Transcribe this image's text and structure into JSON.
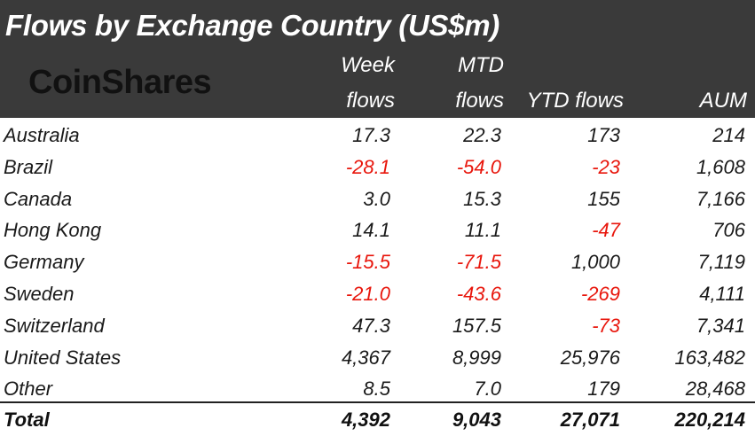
{
  "title": "Flows by Exchange Country (US$m)",
  "logo_text": "CoinShares",
  "columns": {
    "week": [
      "Week",
      "flows"
    ],
    "mtd": [
      "MTD",
      "flows"
    ],
    "ytd": "YTD flows",
    "aum": "AUM"
  },
  "rows": [
    {
      "name": "Australia",
      "week": "17.3",
      "mtd": "22.3",
      "ytd": "173",
      "aum": "214"
    },
    {
      "name": "Brazil",
      "week": "-28.1",
      "mtd": "-54.0",
      "ytd": "-23",
      "aum": "1,608"
    },
    {
      "name": "Canada",
      "week": "3.0",
      "mtd": "15.3",
      "ytd": "155",
      "aum": "7,166"
    },
    {
      "name": "Hong Kong",
      "week": "14.1",
      "mtd": "11.1",
      "ytd": "-47",
      "aum": "706"
    },
    {
      "name": "Germany",
      "week": "-15.5",
      "mtd": "-71.5",
      "ytd": "1,000",
      "aum": "7,119"
    },
    {
      "name": "Sweden",
      "week": "-21.0",
      "mtd": "-43.6",
      "ytd": "-269",
      "aum": "4,111"
    },
    {
      "name": "Switzerland",
      "week": "47.3",
      "mtd": "157.5",
      "ytd": "-73",
      "aum": "7,341"
    },
    {
      "name": "United States",
      "week": "4,367",
      "mtd": "8,999",
      "ytd": "25,976",
      "aum": "163,482"
    },
    {
      "name": "Other",
      "week": "8.5",
      "mtd": "7.0",
      "ytd": "179",
      "aum": "28,468"
    }
  ],
  "total": {
    "name": "Total",
    "week": "4,392",
    "mtd": "9,043",
    "ytd": "27,071",
    "aum": "220,214"
  },
  "colors": {
    "header_bg": "#3a3a3a",
    "header_text": "#ffffff",
    "negative": "#e8160c",
    "text": "#1a1a1a"
  }
}
